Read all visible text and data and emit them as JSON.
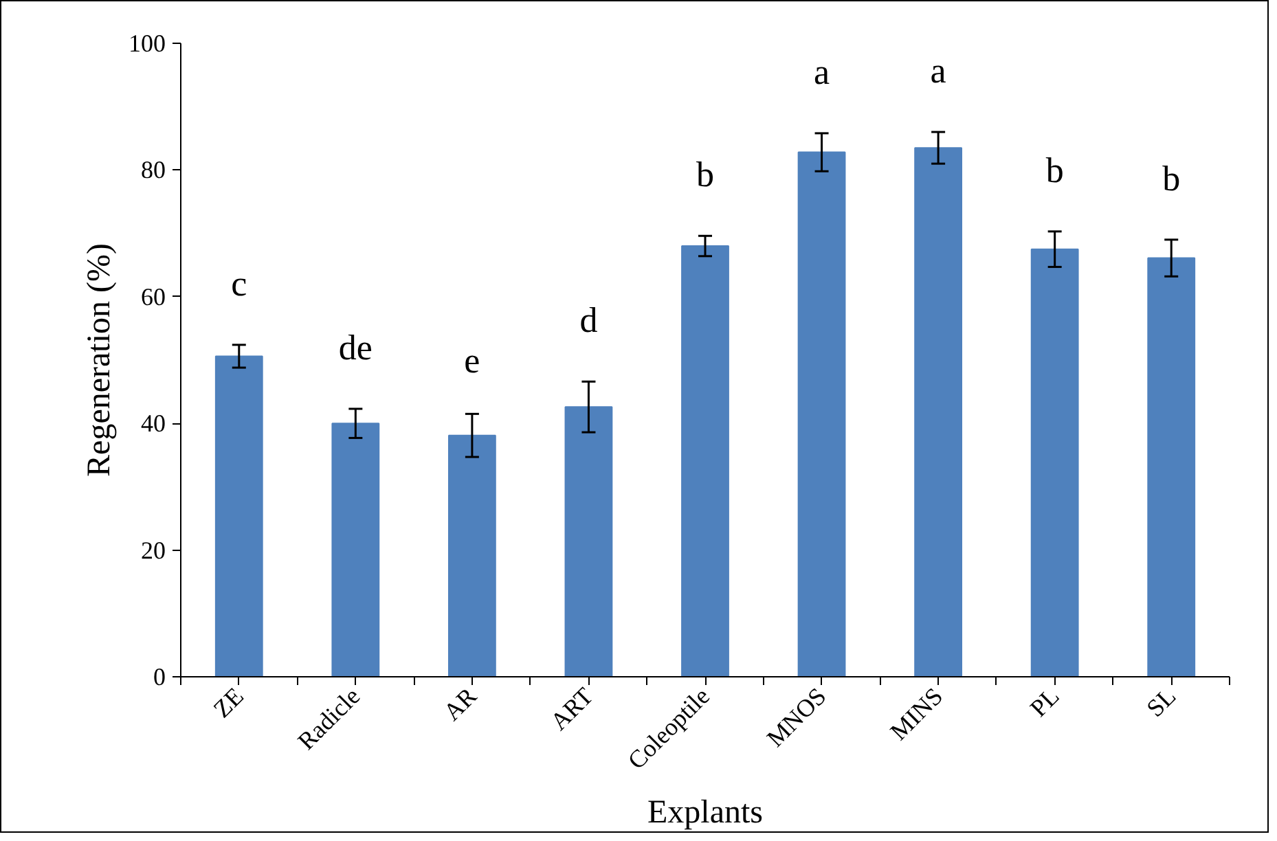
{
  "chart_data": {
    "type": "bar",
    "xlabel": "Explants",
    "ylabel": "Regeneration (%)",
    "categories": [
      "ZE",
      "Radicle",
      "AR",
      "ART",
      "Coleoptile",
      "MNOS",
      "MINS",
      "PL",
      "SL"
    ],
    "values": [
      50.6,
      40.0,
      38.1,
      42.6,
      68.0,
      82.8,
      83.5,
      67.5,
      66.1
    ],
    "errors": [
      1.8,
      2.3,
      3.4,
      4.0,
      1.6,
      3.0,
      2.5,
      2.8,
      2.9
    ],
    "color": "#4f81bd",
    "ylim": [
      0,
      100
    ],
    "yticks": [
      0,
      20,
      40,
      60,
      80,
      100
    ],
    "grid": false,
    "annotations": [
      "c",
      "de",
      "e",
      "d",
      "b",
      "a",
      "a",
      "b",
      "b"
    ]
  }
}
